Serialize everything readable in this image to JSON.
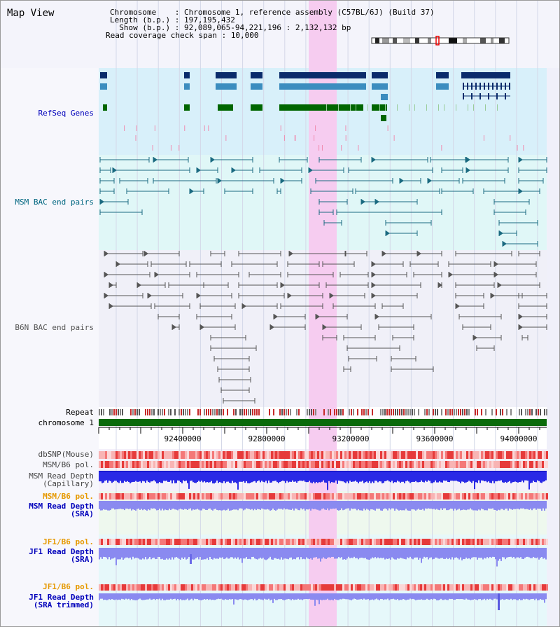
{
  "title": "Map View",
  "header": {
    "chromosome_key": "Chromosome    : ",
    "chromosome_val": "Chromosome 1, reference assembly (C57BL/6J) (Build 37)",
    "length_key": "Length (b.p.) : ",
    "length_val": "197,195,432",
    "show_key": "  Show (b.p.) : ",
    "show_val": "92,089,065-94,221,196 : 2,132,132 bp",
    "span_key": "Read coverage check span : ",
    "span_val": "10,000"
  },
  "labels": {
    "refseq": "RefSeq Genes",
    "msm_bac": "MSM BAC end pairs",
    "b6n_bac": "B6N BAC end pairs",
    "repeat": "Repeat",
    "chromosome": "chromosome 1",
    "dbsnp": "dbSNP(Mouse)",
    "msm_b6_pol": "MSM/B6 pol.",
    "msm_depth_cap_1": "MSM Read Depth",
    "msm_depth_cap_2": "(Capillary)",
    "msm_b6_pol_sra": "MSM/B6 pol.",
    "msm_depth_sra_1": "MSM Read Depth",
    "msm_depth_sra_2": "(SRA)",
    "jf1_b6_pol_1": "JF1/B6 pol.",
    "jf1_depth_sra_1": "JF1 Read Depth",
    "jf1_depth_sra_2": "(SRA)",
    "jf1_b6_pol_2": "JF1/B6 pol.",
    "jf1_depth_trim_1": "JF1 Read Depth",
    "jf1_depth_trim_2": "(SRA trimmed)"
  },
  "axis_ticks": [
    "92400000",
    "92800000",
    "93200000",
    "93600000",
    "94000000"
  ],
  "colors": {
    "refseq_dark": "#0a2b6b",
    "refseq_mid": "#3b8dbf",
    "refseq_green": "#006600",
    "msm_bac": "#1a6a80",
    "b6n_bac": "#555555",
    "highlight": "#f6ccf0",
    "chromosome_bar": "#0a6a0a",
    "depth_blue": "#2a2ae6",
    "depth_light": "#8a8af0",
    "label_blue": "#0000bb",
    "label_orange": "#e69900",
    "label_teal": "#006680"
  }
}
